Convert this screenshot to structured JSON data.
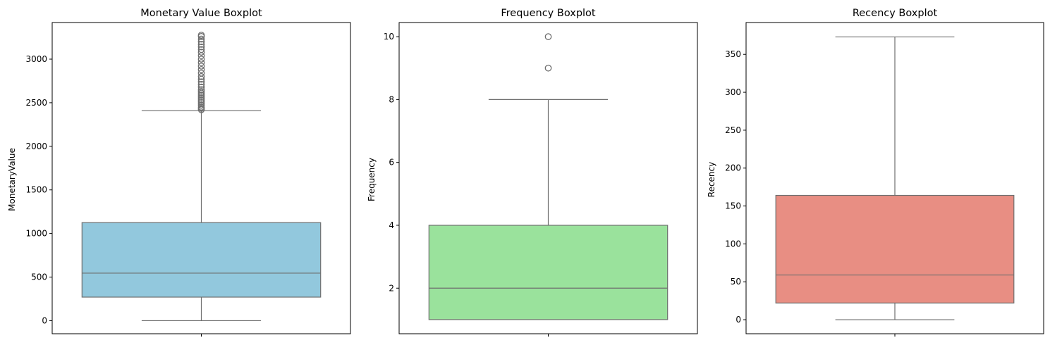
{
  "figure": {
    "box_edge_color": "#6e6e6e",
    "axes_color": "#000000",
    "background": "#ffffff"
  },
  "chart_data": [
    {
      "type": "box",
      "title": "Monetary Value Boxplot",
      "xlabel": "",
      "ylabel": "MonetaryValue",
      "color": "#92c8dd",
      "ylim": [
        -150,
        3420
      ],
      "yticks": [
        0,
        500,
        1000,
        1500,
        2000,
        2500,
        3000
      ],
      "box": {
        "whisker_low": 0,
        "q1": 270,
        "median": 545,
        "q3": 1125,
        "whisker_high": 2410
      },
      "outliers": [
        2420,
        2435,
        2450,
        2470,
        2490,
        2510,
        2530,
        2550,
        2570,
        2590,
        2610,
        2630,
        2650,
        2680,
        2710,
        2740,
        2770,
        2800,
        2840,
        2880,
        2920,
        2960,
        3000,
        3040,
        3080,
        3110,
        3140,
        3170,
        3200,
        3230,
        3260,
        3275
      ]
    },
    {
      "type": "box",
      "title": "Frequency Boxplot",
      "xlabel": "",
      "ylabel": "Frequency",
      "color": "#9ae29c",
      "ylim": [
        0.55,
        10.45
      ],
      "yticks": [
        2,
        4,
        6,
        8,
        10
      ],
      "box": {
        "whisker_low": 1,
        "q1": 1,
        "median": 2,
        "q3": 4,
        "whisker_high": 8
      },
      "outliers": [
        9,
        10
      ]
    },
    {
      "type": "box",
      "title": "Recency Boxplot",
      "xlabel": "",
      "ylabel": "Recency",
      "color": "#e88e83",
      "ylim": [
        -18.5,
        392
      ],
      "yticks": [
        0,
        50,
        100,
        150,
        200,
        250,
        300,
        350
      ],
      "box": {
        "whisker_low": 0,
        "q1": 22,
        "median": 59,
        "q3": 164,
        "whisker_high": 373
      },
      "outliers": []
    }
  ]
}
